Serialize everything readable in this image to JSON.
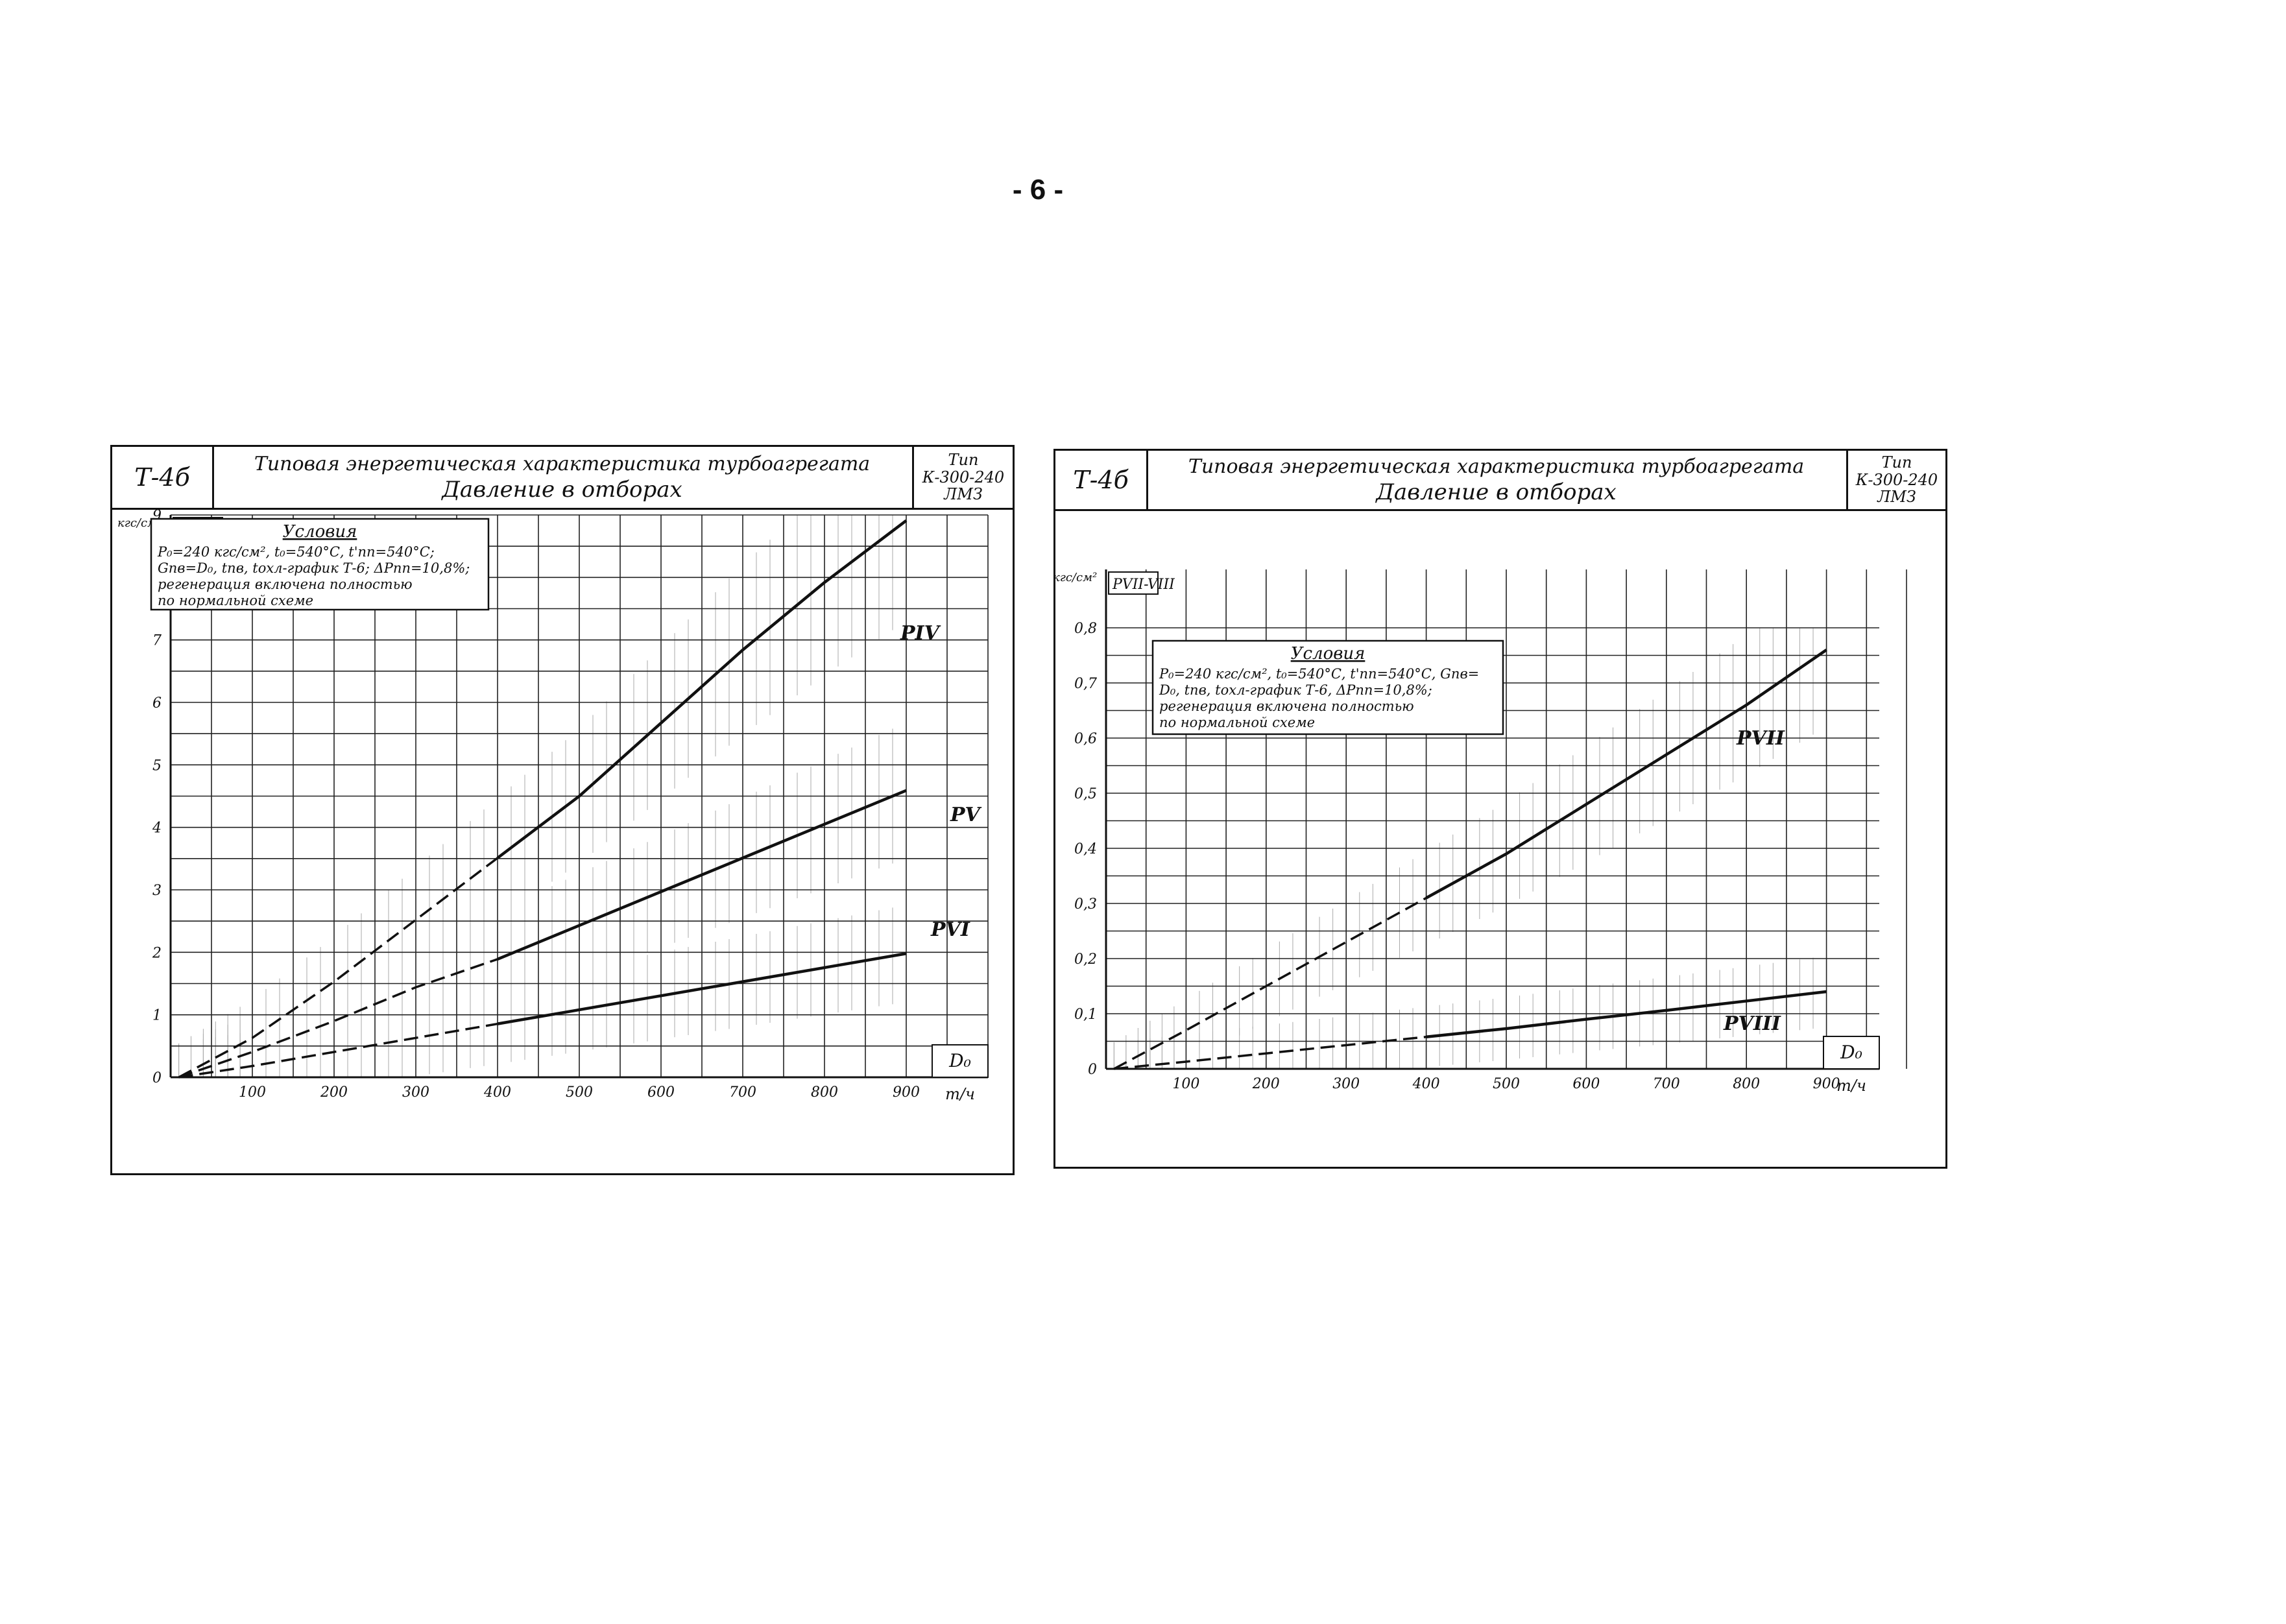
{
  "page_number": "- 6 -",
  "charts": [
    {
      "code": "Т-4б",
      "title_line1": "Типовая энергетическая характеристика турбоагрегата",
      "title_line2": "Давление в отборах",
      "turbine_type": [
        "Тип",
        "К-300-240",
        "ЛМЗ"
      ],
      "y_unit": "кгс/см²",
      "y_axis_name": "PIV-VI",
      "x_axis_name": "D₀",
      "x_unit": "т/ч",
      "conditions_heading": "Условия",
      "conditions_lines": [
        "P₀=240 кгс/см², t₀=540°С, t'пп=540°С;",
        "Gпв=D₀, tпв, tохл-график Т-6; ΔPпп=10,8%;",
        "регенерация включена полностью",
        "по нормальной схеме"
      ]
    },
    {
      "code": "Т-4б",
      "title_line1": "Типовая энергетическая характеристика турбоагрегата",
      "title_line2": "Давление в отборах",
      "turbine_type": [
        "Тип",
        "К-300-240",
        "ЛМЗ"
      ],
      "y_unit": "кгс/см²",
      "y_axis_name": "PVII-VIII",
      "x_axis_name": "D₀",
      "x_unit": "т/ч",
      "conditions_heading": "Условия",
      "conditions_lines": [
        "P₀=240 кгс/см², t₀=540°С, t'пп=540°С, Gпв=",
        "D₀, tпв, tохл-график Т-6, ΔPпп=10,8%;",
        "регенерация включена полностью",
        "по нормальной схеме"
      ]
    }
  ],
  "chart_data": [
    {
      "type": "line",
      "x_ticks": [
        "100",
        "200",
        "300",
        "400",
        "500",
        "600",
        "700",
        "800",
        "900"
      ],
      "y_ticks": [
        "0",
        "1",
        "2",
        "3",
        "4",
        "5",
        "6",
        "7",
        "8",
        "9"
      ],
      "xlim": [
        0,
        1000
      ],
      "ylim": [
        0,
        10
      ],
      "grid": true,
      "series": [
        {
          "name": "PIV",
          "x": [
            10,
            100,
            200,
            300,
            400,
            500,
            600,
            700,
            800,
            900
          ],
          "y": [
            0.0,
            0.7,
            1.7,
            2.8,
            3.9,
            5.0,
            6.3,
            7.6,
            8.8,
            9.9
          ]
        },
        {
          "name": "PV",
          "x": [
            10,
            100,
            200,
            300,
            400,
            500,
            600,
            700,
            800,
            900
          ],
          "y": [
            0.0,
            0.45,
            1.0,
            1.6,
            2.1,
            2.7,
            3.3,
            3.9,
            4.5,
            5.1
          ]
        },
        {
          "name": "PVI",
          "x": [
            10,
            100,
            200,
            300,
            400,
            500,
            600,
            700,
            800,
            900
          ],
          "y": [
            0.0,
            0.2,
            0.45,
            0.7,
            0.95,
            1.2,
            1.45,
            1.7,
            1.95,
            2.2
          ]
        }
      ]
    },
    {
      "type": "line",
      "x_ticks": [
        "100",
        "200",
        "300",
        "400",
        "500",
        "600",
        "700",
        "800",
        "900"
      ],
      "y_ticks": [
        "0",
        "0,1",
        "0,2",
        "0,3",
        "0,4",
        "0,5",
        "0,6",
        "0,7",
        "0,8"
      ],
      "xlim": [
        0,
        1000
      ],
      "ylim": [
        0,
        0.8
      ],
      "grid": true,
      "series": [
        {
          "name": "PVII",
          "x": [
            10,
            100,
            200,
            300,
            400,
            500,
            600,
            700,
            800,
            900
          ],
          "y": [
            0.0,
            0.07,
            0.15,
            0.23,
            0.31,
            0.39,
            0.48,
            0.57,
            0.66,
            0.76
          ]
        },
        {
          "name": "PVIII",
          "x": [
            10,
            100,
            200,
            300,
            400,
            500,
            600,
            700,
            800,
            900
          ],
          "y": [
            0.0,
            0.013,
            0.028,
            0.043,
            0.058,
            0.073,
            0.09,
            0.106,
            0.123,
            0.14
          ]
        }
      ]
    }
  ]
}
